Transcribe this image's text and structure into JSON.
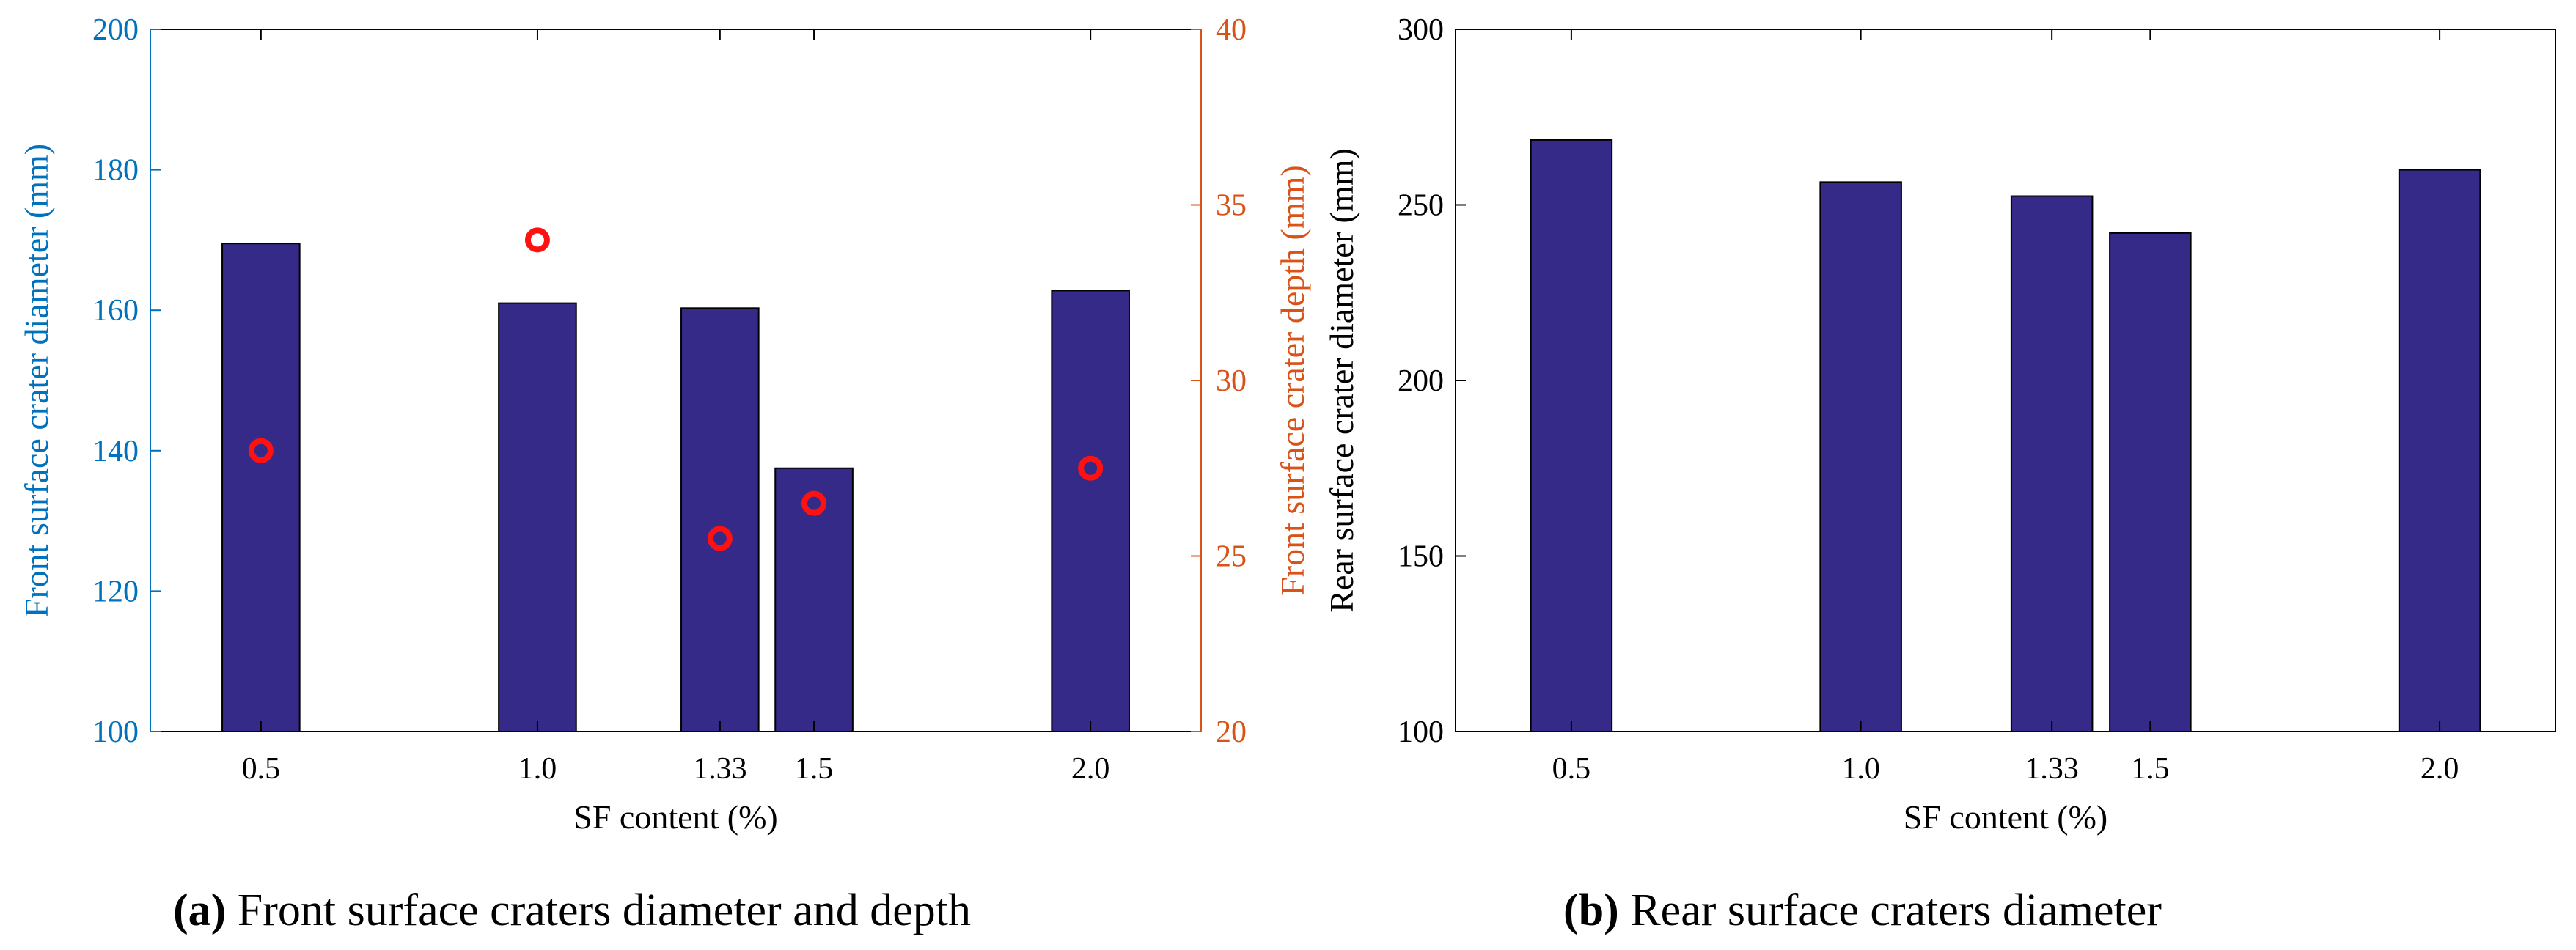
{
  "chart_data": [
    {
      "panel": "a",
      "type": "bar",
      "caption_letter": "(a)",
      "caption_text": " Front surface craters diameter and depth",
      "xlabel": "SF content (%)",
      "ylabel": "Front surface crater diameter (mm)",
      "ylabel_right": "Front surface crater depth (mm)",
      "categories": [
        "0.5",
        "1.0",
        "1.33",
        "1.5",
        "2.0"
      ],
      "x": [
        0.5,
        1.0,
        1.33,
        1.5,
        2.0
      ],
      "xlim": [
        0.3,
        2.2
      ],
      "ylim": [
        100,
        200
      ],
      "yticks": [
        100,
        120,
        140,
        160,
        180,
        200
      ],
      "ylim_right": [
        20,
        40
      ],
      "yticks_right": [
        20,
        25,
        30,
        35,
        40
      ],
      "series": [
        {
          "name": "Front surface crater diameter",
          "kind": "bar",
          "axis": "left",
          "values": [
            169.5,
            161,
            160.3,
            137.5,
            162.8
          ]
        },
        {
          "name": "Front surface crater depth",
          "kind": "scatter",
          "axis": "right",
          "values": [
            28,
            34,
            25.5,
            26.5,
            27.5
          ]
        }
      ],
      "colors": {
        "bar": "#352a87",
        "marker": "#ff1111",
        "left_axis": "#0072bd",
        "right_axis": "#d95319",
        "axis": "#000000"
      }
    },
    {
      "panel": "b",
      "type": "bar",
      "caption_letter": "(b)",
      "caption_text": " Rear surface craters diameter",
      "xlabel": "SF content (%)",
      "ylabel": "Rear surface crater diameter (mm)",
      "categories": [
        "0.5",
        "1.0",
        "1.33",
        "1.5",
        "2.0"
      ],
      "x": [
        0.5,
        1.0,
        1.33,
        1.5,
        2.0
      ],
      "xlim": [
        0.3,
        2.2
      ],
      "ylim": [
        100,
        300
      ],
      "yticks": [
        100,
        150,
        200,
        250,
        300
      ],
      "series": [
        {
          "name": "Rear surface crater diameter",
          "kind": "bar",
          "axis": "left",
          "values": [
            268.5,
            256.5,
            252.5,
            242,
            260
          ]
        }
      ],
      "colors": {
        "bar": "#352a87",
        "axis": "#000000"
      }
    }
  ]
}
